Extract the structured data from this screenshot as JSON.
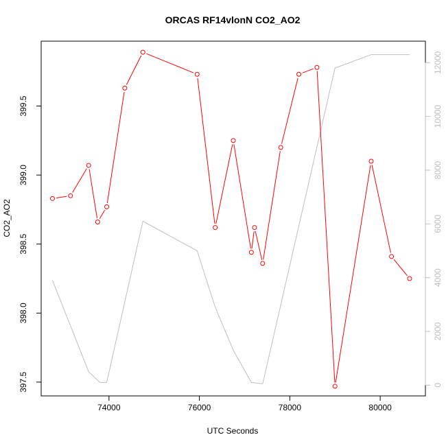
{
  "chart_data": {
    "type": "line",
    "title": "ORCAS RF14vlonN CO2_AO2",
    "xlabel": "UTC Seconds",
    "ylabel": "CO2_AO2",
    "xlim": [
      72500,
      81000
    ],
    "ylim": [
      397.4,
      399.97
    ],
    "ylim_right": [
      -400,
      12800
    ],
    "x_ticks": [
      74000,
      76000,
      78000,
      80000
    ],
    "y_ticks": [
      397.5,
      398.0,
      398.5,
      399.0,
      399.5
    ],
    "y_ticks_right": [
      0,
      2000,
      4000,
      6000,
      8000,
      10000,
      12000
    ],
    "grid": false,
    "colors": {
      "primary": "#ff0000",
      "secondary": "#bebebe",
      "axis": "#000000",
      "right_axis": "#bdbdbd"
    },
    "series": [
      {
        "axis": "left",
        "marker": "circle",
        "x": [
          72750,
          73150,
          73550,
          73750,
          73950,
          74350,
          74750,
          75950,
          76350,
          76750,
          77150,
          77220,
          77400,
          77800,
          78200,
          78600,
          79000,
          79800,
          80250,
          80650
        ],
        "values": [
          398.83,
          398.85,
          399.07,
          398.66,
          398.77,
          399.63,
          399.89,
          399.73,
          398.62,
          399.25,
          398.44,
          398.62,
          398.36,
          399.2,
          399.73,
          399.78,
          397.47,
          399.1,
          398.41,
          398.25
        ]
      },
      {
        "axis": "right",
        "marker": "none",
        "x": [
          72750,
          73550,
          73800,
          73950,
          74750,
          75950,
          76350,
          76750,
          77150,
          77400,
          79000,
          79800,
          80650
        ],
        "values": [
          3900,
          500,
          100,
          100,
          6100,
          5000,
          2900,
          1300,
          100,
          50,
          11800,
          12300,
          12300
        ]
      }
    ]
  }
}
